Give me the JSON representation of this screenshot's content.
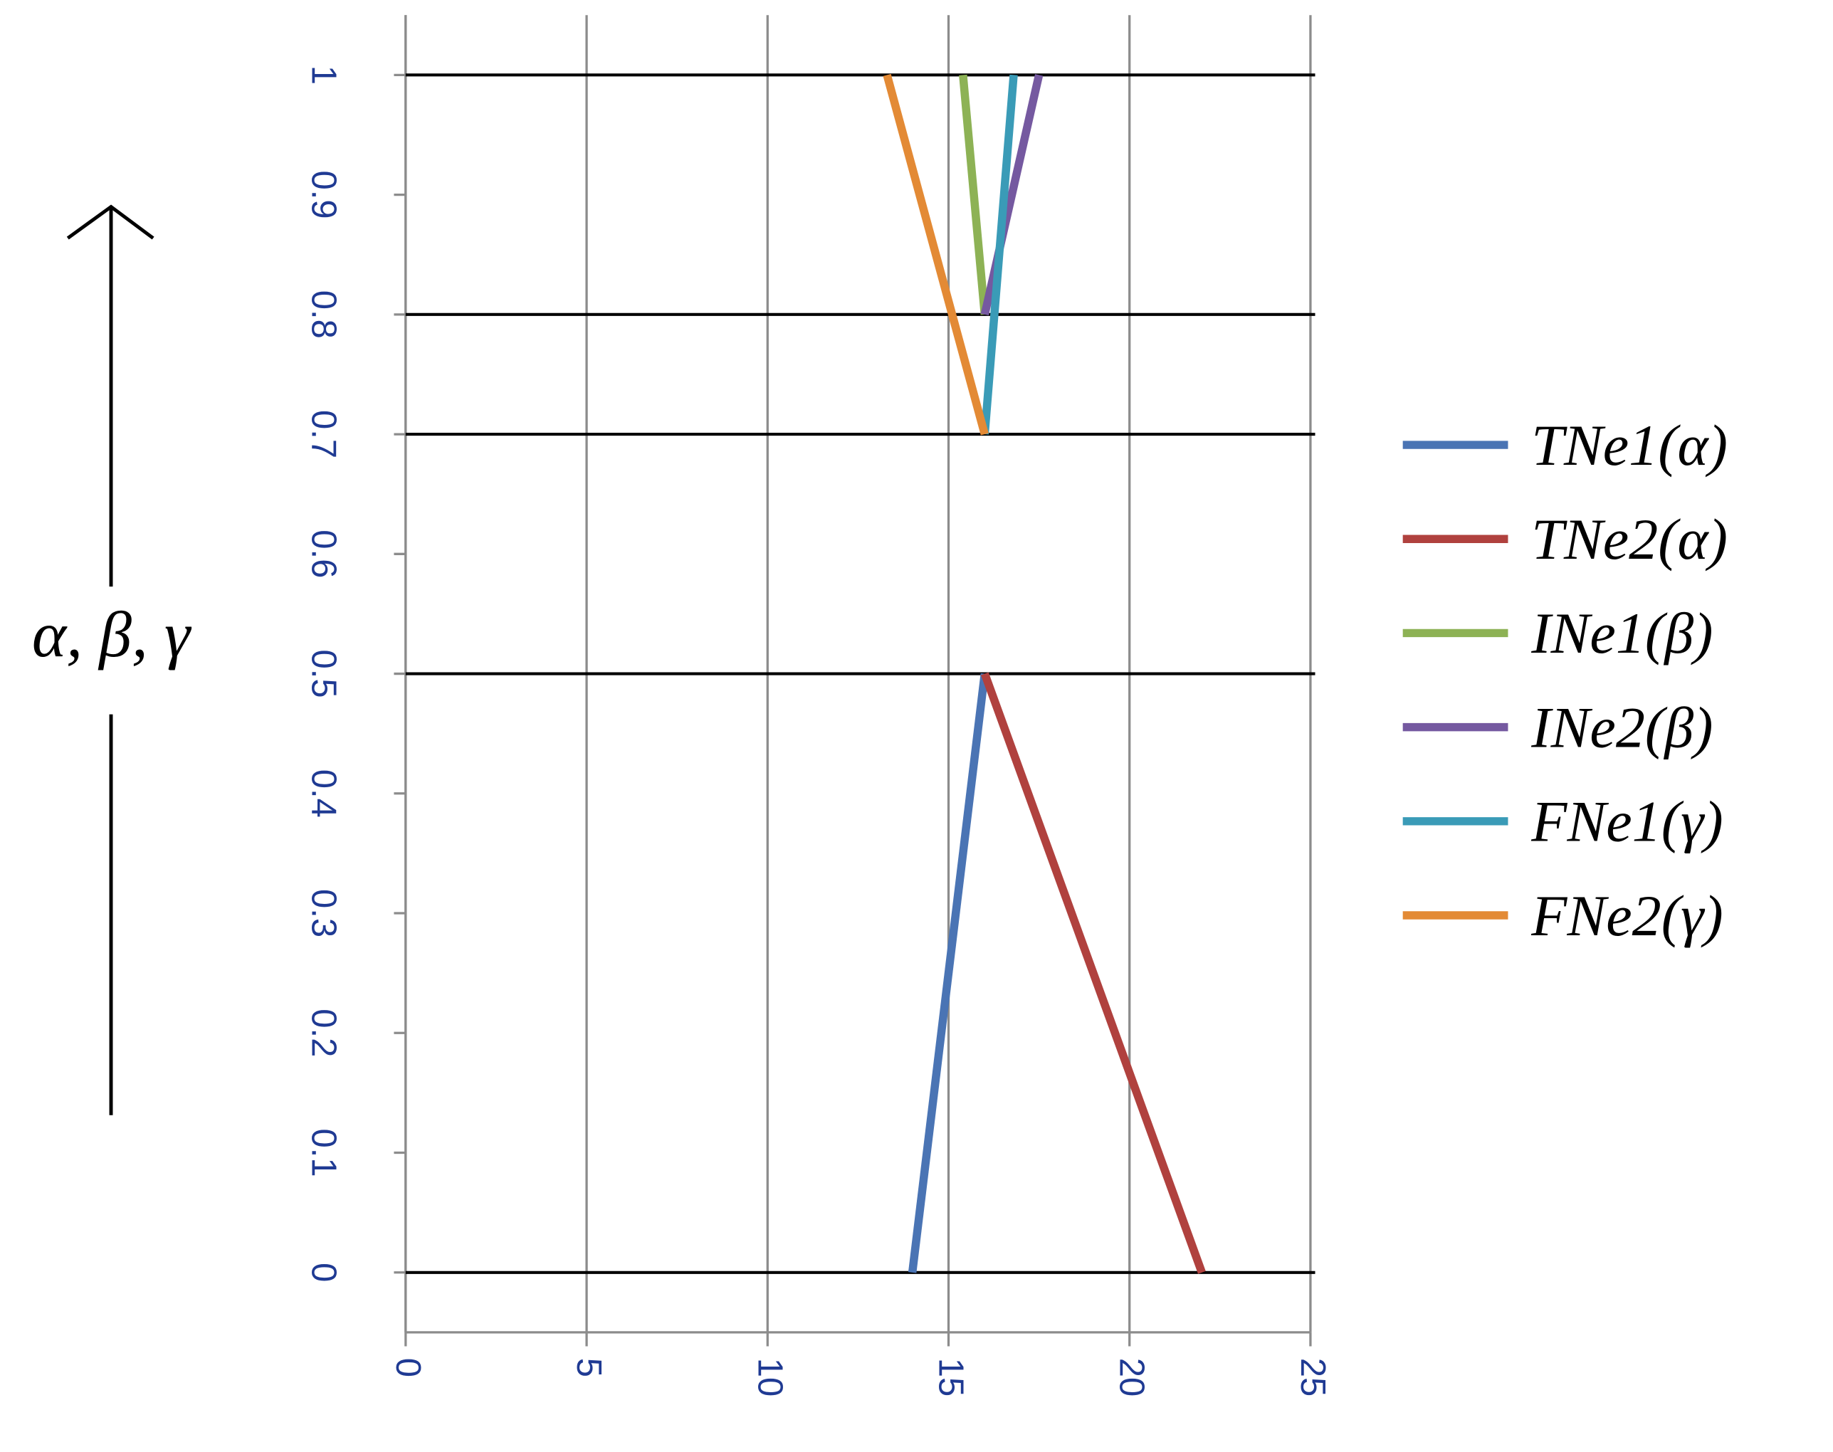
{
  "chart_data": {
    "type": "line",
    "y_label": "α, β, γ",
    "xlim": [
      0,
      25
    ],
    "xticks": [
      0,
      5,
      10,
      15,
      20,
      25
    ],
    "ylim": [
      -0.05,
      1.05
    ],
    "yticks": [
      0,
      0.1,
      0.2,
      0.3,
      0.4,
      0.5,
      0.6,
      0.7,
      0.8,
      0.9,
      1
    ],
    "hlines": [
      0,
      0.5,
      0.7,
      0.8,
      1
    ],
    "grid": true,
    "series": [
      {
        "name": "TNe1(α)",
        "color": "#4a74b4",
        "x": [
          14,
          16
        ],
        "values": [
          0,
          0.5
        ]
      },
      {
        "name": "TNe2(α)",
        "color": "#b0413e",
        "x": [
          22,
          16
        ],
        "values": [
          0,
          0.5
        ]
      },
      {
        "name": "INe1(β)",
        "color": "#8db255",
        "x": [
          15.4,
          16
        ],
        "values": [
          1,
          0.8
        ]
      },
      {
        "name": "INe2(β)",
        "color": "#7559a0",
        "x": [
          17.5,
          16
        ],
        "values": [
          1,
          0.8
        ]
      },
      {
        "name": "FNe1(γ)",
        "color": "#3a9bb7",
        "x": [
          16.8,
          16
        ],
        "values": [
          1,
          0.7
        ]
      },
      {
        "name": "FNe2(γ)",
        "color": "#e38a35",
        "x": [
          13.3,
          16
        ],
        "values": [
          1,
          0.7
        ]
      }
    ]
  }
}
